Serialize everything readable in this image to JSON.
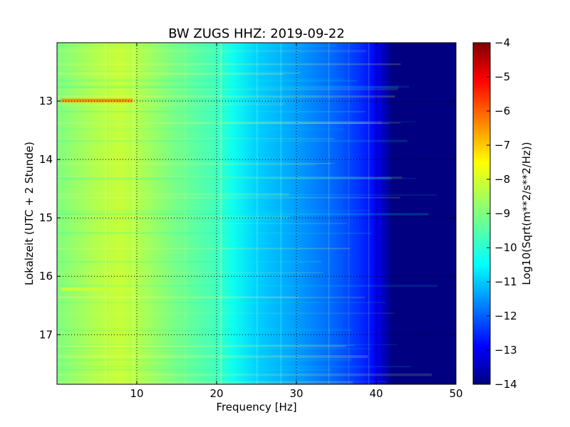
{
  "chart_data": {
    "type": "heatmap",
    "title": "BW ZUGS HHZ: 2019-09-22",
    "xlabel": "Frequency [Hz]",
    "ylabel": "Lokalzeit (UTC + 2 Stunde)",
    "colorbar_label": "Log10(Sqrt(m**2/s**2/Hz))",
    "colormap": "jet",
    "xlim": [
      0,
      50
    ],
    "ylim": [
      17.85,
      12.0
    ],
    "y_inverted": true,
    "clim": [
      -14,
      -4
    ],
    "x_ticks": [
      10,
      20,
      30,
      40,
      50
    ],
    "y_ticks": [
      13,
      14,
      15,
      16,
      17
    ],
    "colorbar_ticks": [
      -4,
      -5,
      -6,
      -7,
      -8,
      -9,
      -10,
      -11,
      -12,
      -13,
      -14
    ],
    "grid": true,
    "grid_style": "dotted",
    "profile": {
      "frequency_hz": [
        0,
        5,
        8,
        10,
        15,
        20,
        22,
        25,
        30,
        35,
        38,
        40,
        41,
        42,
        45,
        50
      ],
      "log10_amplitude": [
        -9.0,
        -8.5,
        -8.3,
        -8.5,
        -9.1,
        -9.6,
        -10.1,
        -10.7,
        -11.2,
        -11.8,
        -12.3,
        -12.9,
        -13.4,
        -14.0,
        -14.0,
        -14.0
      ]
    },
    "features": [
      {
        "time": 12.99,
        "f_start": 0.5,
        "f_end": 9.5,
        "level": -6.7
      },
      {
        "time": 16.22,
        "f_start": 0.5,
        "f_end": 9.5,
        "level": -8.3
      }
    ]
  }
}
